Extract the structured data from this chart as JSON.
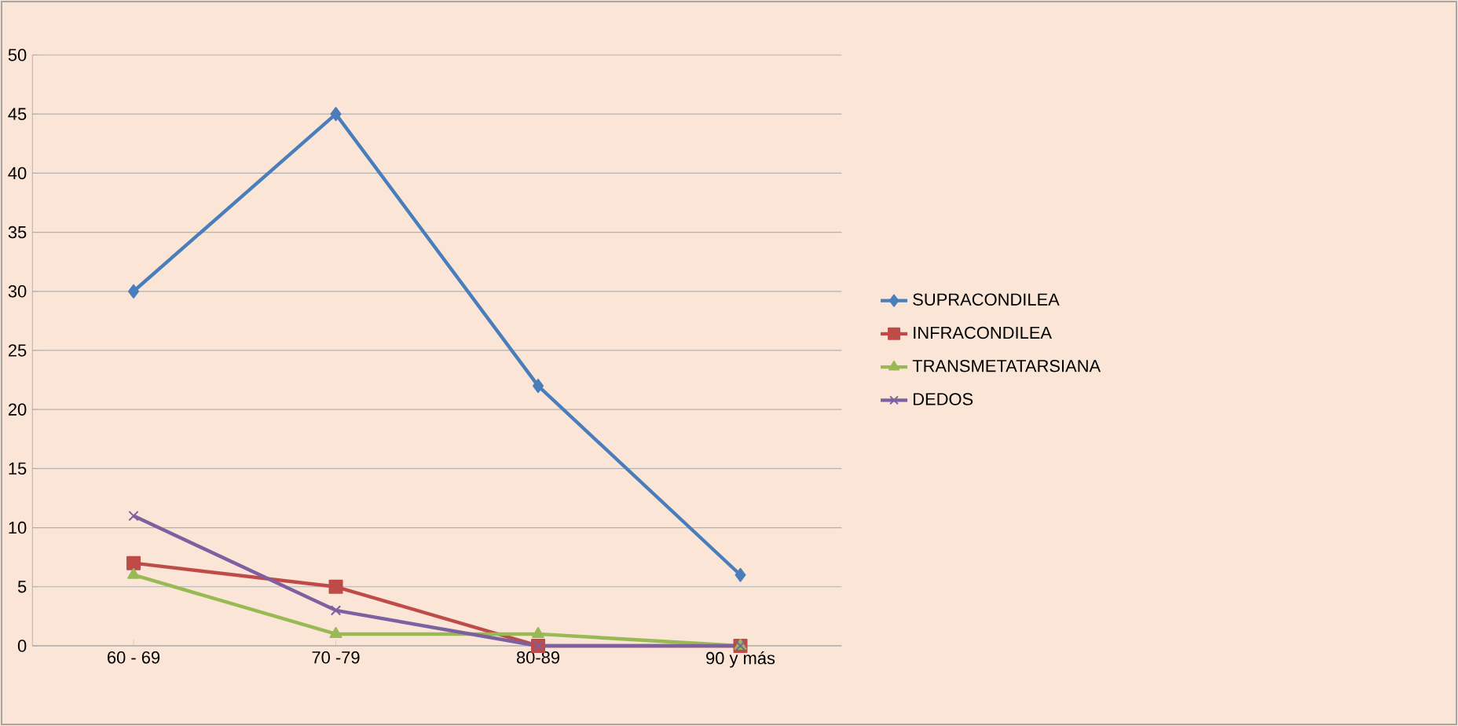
{
  "chart_data": {
    "type": "line",
    "categories": [
      "60 - 69",
      "70 -79",
      "80-89",
      "90 y más"
    ],
    "series": [
      {
        "name": "SUPRACONDILEA",
        "color": "#4a7ebb",
        "marker": "diamond",
        "values": [
          30,
          45,
          22,
          6
        ]
      },
      {
        "name": "INFRACONDILEA",
        "color": "#be4b48",
        "marker": "square",
        "values": [
          7,
          5,
          0,
          0
        ]
      },
      {
        "name": "TRANSMETATARSIANA",
        "color": "#98b954",
        "marker": "triangle",
        "values": [
          6,
          1,
          1,
          0
        ]
      },
      {
        "name": "DEDOS",
        "color": "#7d60a0",
        "marker": "cross",
        "values": [
          11,
          3,
          0,
          0
        ]
      }
    ],
    "ylim": [
      0,
      50
    ],
    "yticks": [
      0,
      5,
      10,
      15,
      20,
      25,
      30,
      35,
      40,
      45,
      50
    ],
    "grid": "y",
    "legend": "right"
  }
}
